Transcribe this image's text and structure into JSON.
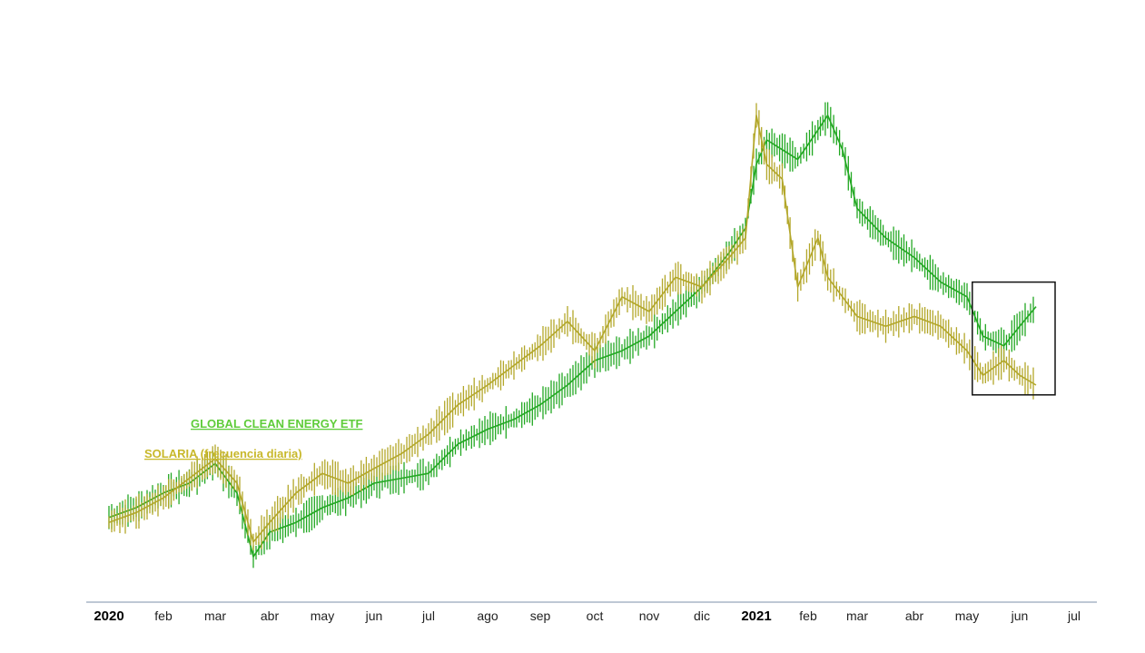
{
  "chart_data": {
    "type": "line",
    "title": "",
    "xlabel": "",
    "ylabel": "",
    "grid": false,
    "legend_position": "left-middle",
    "x_ticks": [
      {
        "label": "2020",
        "year": true
      },
      {
        "label": "feb",
        "year": false
      },
      {
        "label": "mar",
        "year": false
      },
      {
        "label": "abr",
        "year": false
      },
      {
        "label": "may",
        "year": false
      },
      {
        "label": "jun",
        "year": false
      },
      {
        "label": "jul",
        "year": false
      },
      {
        "label": "ago",
        "year": false
      },
      {
        "label": "sep",
        "year": false
      },
      {
        "label": "oct",
        "year": false
      },
      {
        "label": "nov",
        "year": false
      },
      {
        "label": "dic",
        "year": false
      },
      {
        "label": "2021",
        "year": true
      },
      {
        "label": "feb",
        "year": false
      },
      {
        "label": "mar",
        "year": false
      },
      {
        "label": "abr",
        "year": false
      },
      {
        "label": "may",
        "year": false
      },
      {
        "label": "jun",
        "year": false
      },
      {
        "label": "jul",
        "year": false
      }
    ],
    "x_range": [
      0,
      18
    ],
    "y_range": [
      0,
      100
    ],
    "series": [
      {
        "name": "GLOBAL CLEAN ENERGY ETF",
        "color": "#22a822",
        "x": [
          0,
          0.5,
          1,
          1.5,
          2,
          2.4,
          2.7,
          3,
          3.5,
          4,
          4.5,
          5,
          5.5,
          6,
          6.5,
          7,
          7.5,
          8,
          8.5,
          9,
          9.5,
          10,
          10.5,
          11,
          11.5,
          11.8,
          12,
          12.2,
          12.5,
          12.8,
          13.2,
          13.4,
          13.7,
          14,
          14.5,
          15,
          15.5,
          16,
          16.3,
          16.7,
          17,
          17.3
        ],
        "values": [
          13,
          15,
          18,
          20,
          24,
          18,
          5,
          10,
          12,
          15,
          17,
          20,
          21,
          22,
          28,
          31,
          33,
          36,
          40,
          45,
          47,
          50,
          55,
          60,
          67,
          72,
          85,
          90,
          88,
          86,
          92,
          95,
          88,
          76,
          70,
          66,
          61,
          58,
          50,
          48,
          52,
          56
        ]
      },
      {
        "name": "SOLARIA (frecuencia diaria)",
        "color": "#b3a72a",
        "x": [
          0,
          0.5,
          1,
          1.5,
          2,
          2.4,
          2.7,
          3,
          3.5,
          4,
          4.5,
          5,
          5.5,
          6,
          6.5,
          7,
          7.5,
          8,
          8.5,
          9,
          9.5,
          10,
          10.5,
          11,
          11.5,
          11.8,
          12,
          12.2,
          12.5,
          12.8,
          13.2,
          13.4,
          13.7,
          14,
          14.5,
          15,
          15.5,
          16,
          16.3,
          16.7,
          17,
          17.3
        ],
        "values": [
          12,
          14,
          17,
          21,
          25,
          20,
          8,
          12,
          18,
          22,
          20,
          23,
          26,
          30,
          36,
          40,
          44,
          48,
          53,
          47,
          58,
          55,
          62,
          60,
          66,
          70,
          95,
          85,
          82,
          60,
          70,
          62,
          58,
          54,
          52,
          54,
          52,
          47,
          42,
          45,
          42,
          40
        ]
      }
    ],
    "annotations": [
      {
        "type": "box",
        "label": "",
        "x_range": [
          16.1,
          17.65
        ],
        "y_range": [
          38,
          61
        ]
      }
    ]
  }
}
